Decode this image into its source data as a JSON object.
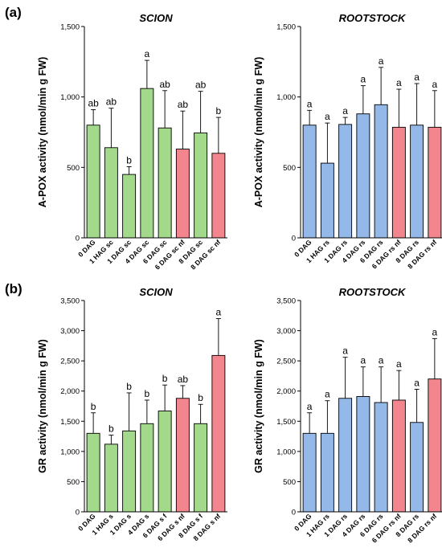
{
  "panel_labels": [
    "(a)",
    "(b)"
  ],
  "colors": {
    "green": "#a3d98a",
    "red": "#f2858e",
    "blue": "#94b8e8",
    "stroke": "#000000"
  },
  "chart_data": [
    {
      "type": "bar",
      "panel": "(a)",
      "title": "SCION",
      "ylabel": "A-POX activity (nmol/min g FW)",
      "ylim": [
        0,
        1500
      ],
      "yticks": [
        0,
        500,
        1000,
        1500
      ],
      "ytick_labels": [
        "0",
        "500",
        "1,000",
        "1,500"
      ],
      "categories": [
        "0 DAG",
        "1 HAG sc",
        "1 DAG sc",
        "4 DAG sc",
        "6 DAG sc",
        "6 DAG sc nf",
        "8 DAG sc",
        "8 DAG sc nf"
      ],
      "values": [
        800,
        640,
        450,
        1060,
        780,
        630,
        745,
        600
      ],
      "errors": [
        110,
        280,
        55,
        200,
        265,
        270,
        295,
        255
      ],
      "letters": [
        "ab",
        "ab",
        "b",
        "a",
        "ab",
        "ab",
        "ab",
        "b"
      ],
      "bar_colors": [
        "green",
        "green",
        "green",
        "green",
        "green",
        "red",
        "green",
        "red"
      ]
    },
    {
      "type": "bar",
      "panel": "(a)",
      "title": "ROOTSTOCK",
      "ylabel": "A-POX activity (nmol/min g FW)",
      "ylim": [
        0,
        1500
      ],
      "yticks": [
        0,
        500,
        1000,
        1500
      ],
      "ytick_labels": [
        "0",
        "500",
        "1,000",
        "1,500"
      ],
      "categories": [
        "0 DAG",
        "1 HAG rs",
        "1 DAG rs",
        "4 DAG rs",
        "6 DAG rs",
        "6 DAG rs nf",
        "8 DAG rs",
        "8 DAG rs nf"
      ],
      "values": [
        800,
        530,
        805,
        880,
        945,
        785,
        800,
        785
      ],
      "errors": [
        105,
        285,
        50,
        200,
        265,
        270,
        295,
        260
      ],
      "letters": [
        "a",
        "a",
        "a",
        "a",
        "a",
        "a",
        "a",
        "a"
      ],
      "bar_colors": [
        "blue",
        "blue",
        "blue",
        "blue",
        "blue",
        "red",
        "blue",
        "red"
      ]
    },
    {
      "type": "bar",
      "panel": "(b)",
      "title": "SCION",
      "ylabel": "GR activity (nmol/min g FW)",
      "ylim": [
        0,
        3500
      ],
      "yticks": [
        0,
        500,
        1000,
        1500,
        2000,
        2500,
        3000,
        3500
      ],
      "ytick_labels": [
        "0",
        "500",
        "1,000",
        "1,500",
        "2,000",
        "2,500",
        "3,000",
        "3,500"
      ],
      "categories": [
        "0 DAG",
        "1 HAG s",
        "1 DAG s",
        "4 DAG s",
        "6 DAG s f",
        "6 DAG s nf",
        "8 DAG s f",
        "8 DAG s nf"
      ],
      "values": [
        1300,
        1120,
        1340,
        1460,
        1670,
        1880,
        1460,
        2590
      ],
      "errors": [
        340,
        150,
        630,
        390,
        430,
        210,
        320,
        610
      ],
      "letters": [
        "b",
        "b",
        "b",
        "b",
        "b",
        "ab",
        "b",
        "a"
      ],
      "bar_colors": [
        "green",
        "green",
        "green",
        "green",
        "green",
        "red",
        "green",
        "red"
      ]
    },
    {
      "type": "bar",
      "panel": "(b)",
      "title": "ROOTSTOCK",
      "ylabel": "GR activity (nmol/min g FW)",
      "ylim": [
        0,
        3500
      ],
      "yticks": [
        0,
        500,
        1000,
        1500,
        2000,
        2500,
        3000,
        3500
      ],
      "ytick_labels": [
        "0",
        "500",
        "1,000",
        "1,500",
        "2,000",
        "2,500",
        "3,000",
        "3,500"
      ],
      "categories": [
        "0 DAG",
        "1 HAG rs",
        "1 DAG rs",
        "4 DAG rs",
        "6 DAG rs",
        "6 DAG rs nf",
        "8 DAG rs",
        "8 DAG rs nf"
      ],
      "values": [
        1300,
        1300,
        1880,
        1910,
        1810,
        1850,
        1480,
        2200
      ],
      "errors": [
        340,
        540,
        680,
        490,
        590,
        490,
        550,
        670
      ],
      "letters": [
        "a",
        "a",
        "a",
        "a",
        "a",
        "a",
        "a",
        "a"
      ],
      "bar_colors": [
        "blue",
        "blue",
        "blue",
        "blue",
        "blue",
        "red",
        "blue",
        "red"
      ]
    }
  ]
}
